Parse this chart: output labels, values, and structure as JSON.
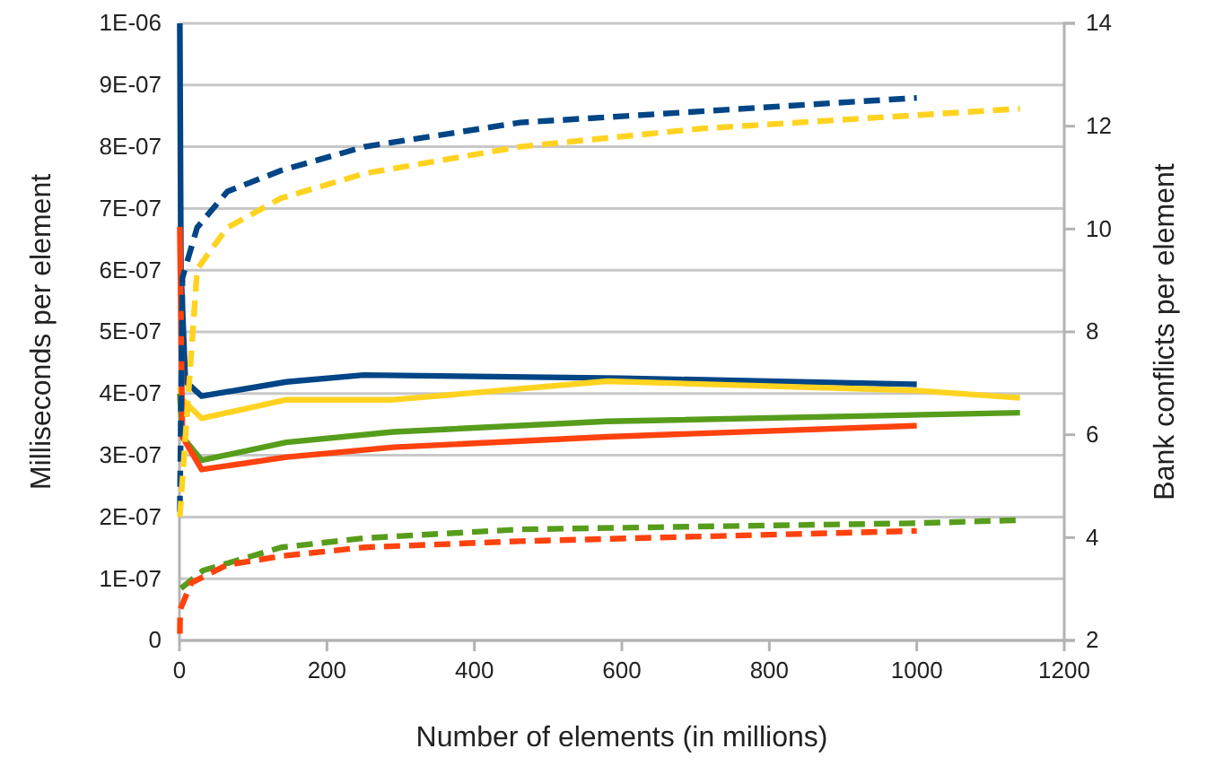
{
  "chart_data": {
    "type": "line",
    "xlabel": "Number of elements (in millions)",
    "ylabel": "Milliseconds per element",
    "y2label": "Bank conflicts per element",
    "xlim": [
      0,
      1200
    ],
    "xticks": [
      0,
      200,
      400,
      600,
      800,
      1000,
      1200
    ],
    "ylim": [
      0,
      1e-06
    ],
    "yticks": [
      {
        "value": 0,
        "label": "0"
      },
      {
        "value": 1e-07,
        "label": "1E-07"
      },
      {
        "value": 2e-07,
        "label": "2E-07"
      },
      {
        "value": 3e-07,
        "label": "3E-07"
      },
      {
        "value": 4e-07,
        "label": "4E-07"
      },
      {
        "value": 5e-07,
        "label": "5E-07"
      },
      {
        "value": 6e-07,
        "label": "6E-07"
      },
      {
        "value": 7e-07,
        "label": "7E-07"
      },
      {
        "value": 8e-07,
        "label": "8E-07"
      },
      {
        "value": 9e-07,
        "label": "9E-07"
      },
      {
        "value": 1e-06,
        "label": "1E-06"
      }
    ],
    "y2lim": [
      2,
      14
    ],
    "y2ticks": [
      2,
      4,
      6,
      8,
      10,
      12,
      14
    ],
    "grid": "y",
    "marker": "none",
    "series": [
      {
        "color": "#004586",
        "line_style": "solid",
        "x": [
          0.5,
          2,
          8,
          30,
          145,
          250,
          600,
          1000
        ],
        "values": [
          1e-06,
          6e-07,
          4.2e-07,
          3.96e-07,
          4.19e-07,
          4.3e-07,
          4.25e-07,
          4.15e-07
        ]
      },
      {
        "color": "#ffd320",
        "line_style": "solid",
        "x": [
          0.5,
          4,
          30,
          145,
          290,
          580,
          1000,
          1140
        ],
        "values": [
          4.1e-07,
          3.9e-07,
          3.6e-07,
          3.9e-07,
          3.9e-07,
          4.2e-07,
          4.05e-07,
          3.93e-07
        ]
      },
      {
        "color": "#579d1c",
        "line_style": "solid",
        "x": [
          0.5,
          4,
          30,
          145,
          290,
          580,
          1140
        ],
        "values": [
          4e-07,
          3.3e-07,
          2.92e-07,
          3.21e-07,
          3.38e-07,
          3.55e-07,
          3.69e-07
        ]
      },
      {
        "color": "#ff420e",
        "line_style": "solid",
        "x": [
          0.5,
          4,
          30,
          145,
          290,
          580,
          1000
        ],
        "values": [
          6.7e-07,
          3.3e-07,
          2.77e-07,
          2.97e-07,
          3.13e-07,
          3.3e-07,
          3.48e-07
        ]
      },
      {
        "color": "#004586",
        "line_style": "dashed",
        "axis": "y2",
        "x": [
          0.5,
          4,
          24,
          65,
          138,
          251,
          462,
          1000
        ],
        "values": [
          4.5,
          9.05,
          10.03,
          10.73,
          11.14,
          11.6,
          12.07,
          12.55
        ]
      },
      {
        "color": "#ffd320",
        "line_style": "dashed",
        "axis": "y2",
        "x": [
          0.5,
          24,
          65,
          138,
          251,
          462,
          705,
          1140
        ],
        "values": [
          4.4,
          9.22,
          10.03,
          10.6,
          11.08,
          11.6,
          11.95,
          12.34
        ]
      },
      {
        "color": "#579d1c",
        "line_style": "dashed",
        "axis": "y2",
        "x": [
          2,
          32,
          138,
          251,
          462,
          1000,
          1140
        ],
        "values": [
          3.01,
          3.36,
          3.81,
          3.99,
          4.16,
          4.28,
          4.34
        ]
      },
      {
        "color": "#ff420e",
        "line_style": "dashed",
        "axis": "y2",
        "x": [
          0.5,
          1,
          16,
          65,
          138,
          251,
          462,
          1000
        ],
        "values": [
          2.13,
          2.6,
          3.12,
          3.47,
          3.64,
          3.81,
          3.93,
          4.13
        ]
      }
    ]
  }
}
